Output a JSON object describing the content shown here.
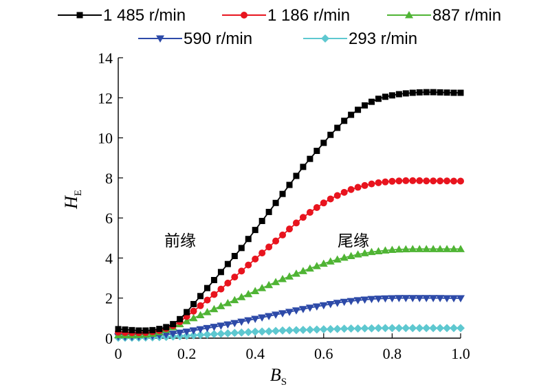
{
  "chart_data": {
    "type": "line",
    "xlabel": "B",
    "xlabel_sub": "S",
    "ylabel": "H",
    "ylabel_sub": "E",
    "xlim": [
      0,
      1.0
    ],
    "ylim": [
      0,
      14
    ],
    "xticks": [
      "0",
      "0.2",
      "0.4",
      "0.6",
      "0.8",
      "1.0"
    ],
    "yticks": [
      "0",
      "2",
      "4",
      "6",
      "8",
      "10",
      "12",
      "14"
    ],
    "legend_position": "top",
    "annotations": [
      {
        "text": "前缘",
        "x": 0.18,
        "y": 4.9
      },
      {
        "text": "尾缘",
        "x": 0.69,
        "y": 4.9
      }
    ],
    "series": [
      {
        "name": "1 485 r/min",
        "color": "#000000",
        "marker": "square",
        "x": [
          0,
          0.02,
          0.04,
          0.06,
          0.08,
          0.1,
          0.12,
          0.14,
          0.16,
          0.18,
          0.2,
          0.22,
          0.24,
          0.26,
          0.28,
          0.3,
          0.32,
          0.34,
          0.36,
          0.38,
          0.4,
          0.42,
          0.44,
          0.46,
          0.48,
          0.5,
          0.52,
          0.54,
          0.56,
          0.58,
          0.6,
          0.62,
          0.64,
          0.66,
          0.68,
          0.7,
          0.72,
          0.74,
          0.76,
          0.78,
          0.8,
          0.82,
          0.84,
          0.86,
          0.88,
          0.9,
          0.92,
          0.94,
          0.96,
          0.98,
          1.0
        ],
        "y": [
          0.45,
          0.43,
          0.4,
          0.38,
          0.38,
          0.4,
          0.46,
          0.55,
          0.7,
          0.95,
          1.3,
          1.7,
          2.1,
          2.5,
          2.9,
          3.3,
          3.7,
          4.1,
          4.5,
          4.95,
          5.4,
          5.85,
          6.3,
          6.75,
          7.2,
          7.65,
          8.1,
          8.55,
          8.95,
          9.35,
          9.75,
          10.15,
          10.5,
          10.85,
          11.15,
          11.4,
          11.62,
          11.8,
          11.95,
          12.05,
          12.12,
          12.18,
          12.22,
          12.25,
          12.27,
          12.28,
          12.28,
          12.27,
          12.26,
          12.25,
          12.25
        ]
      },
      {
        "name": "1 186 r/min",
        "color": "#e8141e",
        "marker": "circle",
        "x": [
          0,
          0.02,
          0.04,
          0.06,
          0.08,
          0.1,
          0.12,
          0.14,
          0.16,
          0.18,
          0.2,
          0.22,
          0.24,
          0.26,
          0.28,
          0.3,
          0.32,
          0.34,
          0.36,
          0.38,
          0.4,
          0.42,
          0.44,
          0.46,
          0.48,
          0.5,
          0.52,
          0.54,
          0.56,
          0.58,
          0.6,
          0.62,
          0.64,
          0.66,
          0.68,
          0.7,
          0.72,
          0.74,
          0.76,
          0.78,
          0.8,
          0.82,
          0.84,
          0.86,
          0.88,
          0.9,
          0.92,
          0.94,
          0.96,
          0.98,
          1.0
        ],
        "y": [
          0.3,
          0.28,
          0.27,
          0.27,
          0.28,
          0.32,
          0.38,
          0.48,
          0.62,
          0.82,
          1.08,
          1.35,
          1.62,
          1.9,
          2.18,
          2.45,
          2.75,
          3.05,
          3.35,
          3.65,
          3.95,
          4.25,
          4.55,
          4.85,
          5.15,
          5.45,
          5.75,
          6.03,
          6.28,
          6.52,
          6.75,
          6.95,
          7.12,
          7.28,
          7.42,
          7.53,
          7.62,
          7.7,
          7.76,
          7.8,
          7.83,
          7.85,
          7.86,
          7.86,
          7.86,
          7.85,
          7.85,
          7.85,
          7.85,
          7.84,
          7.84
        ]
      },
      {
        "name": "887 r/min",
        "color": "#4fb434",
        "marker": "triangle-up",
        "x": [
          0,
          0.02,
          0.04,
          0.06,
          0.08,
          0.1,
          0.12,
          0.14,
          0.16,
          0.18,
          0.2,
          0.22,
          0.24,
          0.26,
          0.28,
          0.3,
          0.32,
          0.34,
          0.36,
          0.38,
          0.4,
          0.42,
          0.44,
          0.46,
          0.48,
          0.5,
          0.52,
          0.54,
          0.56,
          0.58,
          0.6,
          0.62,
          0.64,
          0.66,
          0.68,
          0.7,
          0.72,
          0.74,
          0.76,
          0.78,
          0.8,
          0.82,
          0.84,
          0.86,
          0.88,
          0.9,
          0.92,
          0.94,
          0.96,
          0.98,
          1.0
        ],
        "y": [
          0.15,
          0.15,
          0.15,
          0.16,
          0.18,
          0.22,
          0.3,
          0.42,
          0.55,
          0.7,
          0.85,
          1.0,
          1.15,
          1.3,
          1.45,
          1.6,
          1.75,
          1.9,
          2.05,
          2.2,
          2.35,
          2.5,
          2.65,
          2.8,
          2.95,
          3.08,
          3.22,
          3.35,
          3.48,
          3.6,
          3.72,
          3.83,
          3.93,
          4.02,
          4.1,
          4.18,
          4.24,
          4.3,
          4.34,
          4.38,
          4.41,
          4.43,
          4.44,
          4.45,
          4.45,
          4.45,
          4.45,
          4.45,
          4.45,
          4.45,
          4.45
        ]
      },
      {
        "name": "590 r/min",
        "color": "#2d4aa8",
        "marker": "triangle-down",
        "x": [
          0,
          0.02,
          0.04,
          0.06,
          0.08,
          0.1,
          0.12,
          0.14,
          0.16,
          0.18,
          0.2,
          0.22,
          0.24,
          0.26,
          0.28,
          0.3,
          0.32,
          0.34,
          0.36,
          0.38,
          0.4,
          0.42,
          0.44,
          0.46,
          0.48,
          0.5,
          0.52,
          0.54,
          0.56,
          0.58,
          0.6,
          0.62,
          0.64,
          0.66,
          0.68,
          0.7,
          0.72,
          0.74,
          0.76,
          0.78,
          0.8,
          0.82,
          0.84,
          0.86,
          0.88,
          0.9,
          0.92,
          0.94,
          0.96,
          0.98,
          1.0
        ],
        "y": [
          0.08,
          0.07,
          0.07,
          0.08,
          0.09,
          0.11,
          0.14,
          0.18,
          0.22,
          0.27,
          0.32,
          0.38,
          0.44,
          0.5,
          0.56,
          0.62,
          0.68,
          0.75,
          0.82,
          0.89,
          0.96,
          1.03,
          1.1,
          1.17,
          1.24,
          1.31,
          1.38,
          1.45,
          1.52,
          1.58,
          1.64,
          1.7,
          1.76,
          1.81,
          1.85,
          1.89,
          1.92,
          1.95,
          1.97,
          1.98,
          1.99,
          2.0,
          2.0,
          2.0,
          2.0,
          2.0,
          2.0,
          2.0,
          1.99,
          1.99,
          1.99
        ]
      },
      {
        "name": "293 r/min",
        "color": "#5ec8d0",
        "marker": "diamond",
        "x": [
          0,
          0.02,
          0.04,
          0.06,
          0.08,
          0.1,
          0.12,
          0.14,
          0.16,
          0.18,
          0.2,
          0.22,
          0.24,
          0.26,
          0.28,
          0.3,
          0.32,
          0.34,
          0.36,
          0.38,
          0.4,
          0.42,
          0.44,
          0.46,
          0.48,
          0.5,
          0.52,
          0.54,
          0.56,
          0.58,
          0.6,
          0.62,
          0.64,
          0.66,
          0.68,
          0.7,
          0.72,
          0.74,
          0.76,
          0.78,
          0.8,
          0.82,
          0.84,
          0.86,
          0.88,
          0.9,
          0.92,
          0.94,
          0.96,
          0.98,
          1.0
        ],
        "y": [
          0.02,
          0.02,
          0.02,
          0.02,
          0.03,
          0.04,
          0.05,
          0.06,
          0.08,
          0.1,
          0.12,
          0.14,
          0.16,
          0.18,
          0.2,
          0.22,
          0.24,
          0.26,
          0.28,
          0.3,
          0.32,
          0.33,
          0.34,
          0.36,
          0.38,
          0.39,
          0.4,
          0.41,
          0.42,
          0.43,
          0.44,
          0.45,
          0.46,
          0.47,
          0.48,
          0.48,
          0.49,
          0.49,
          0.5,
          0.5,
          0.5,
          0.5,
          0.5,
          0.5,
          0.5,
          0.5,
          0.5,
          0.5,
          0.5,
          0.5,
          0.5
        ]
      }
    ]
  }
}
